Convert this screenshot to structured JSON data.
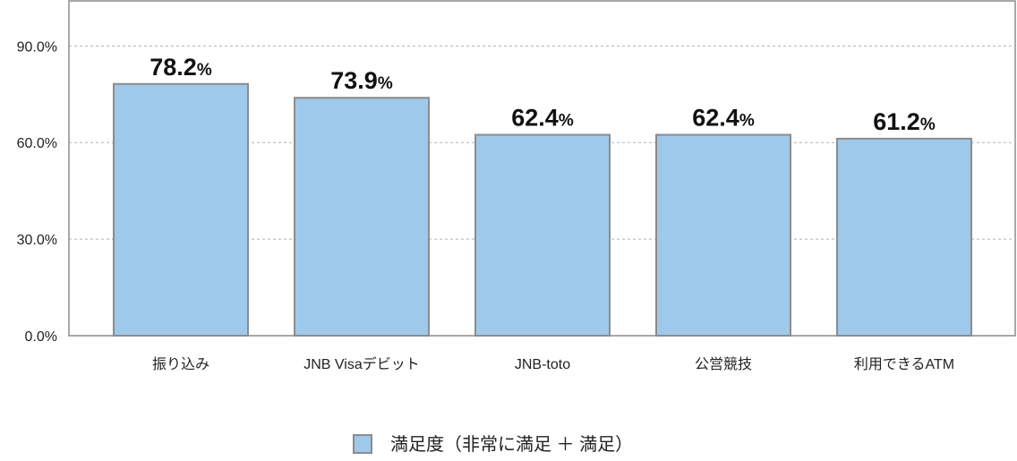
{
  "chart_data": {
    "type": "bar",
    "title": "",
    "xlabel": "",
    "ylabel": "",
    "categories": [
      "振り込み",
      "JNB Visaデビット",
      "JNB-toto",
      "公営競技",
      "利用できるATM"
    ],
    "series": [
      {
        "name": "満足度（非常に満足 ＋ 満足）",
        "values": [
          78.2,
          73.9,
          62.4,
          62.4,
          61.2
        ]
      }
    ],
    "value_unit": "%",
    "ylim": [
      0,
      104
    ],
    "yticks": [
      0,
      30,
      60,
      90
    ],
    "ytick_labels": [
      "0.0%",
      "30.0%",
      "60.0%",
      "90.0%"
    ],
    "grid": true,
    "legend_position": "bottom-center",
    "colors": {
      "bar": "#9fc9ea",
      "bar_border": "#8c8c8c",
      "grid": "#b0b0b0",
      "axis": "#8c8c8c"
    }
  }
}
